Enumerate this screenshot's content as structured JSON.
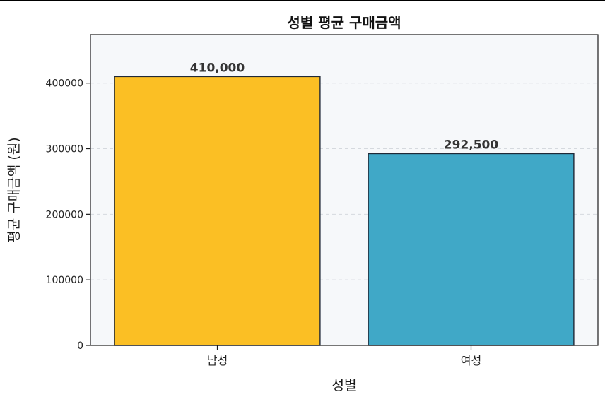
{
  "chart_data": {
    "type": "bar",
    "title": "성별 평균 구매금액",
    "xlabel": "성별",
    "ylabel": "평균 구매금액 (원)",
    "categories": [
      "남성",
      "여성"
    ],
    "values": [
      410000,
      292500
    ],
    "data_labels": [
      "410,000",
      "292,500"
    ],
    "bar_colors": [
      "#FBBF24",
      "#40A8C7"
    ],
    "edge_color": "#1F2937",
    "plot_background": "#F6F8FA",
    "ylim": [
      0,
      474000
    ],
    "yticks": [
      0,
      100000,
      200000,
      300000,
      400000
    ],
    "ytick_labels": [
      "0",
      "100000",
      "200000",
      "300000",
      "400000"
    ],
    "grid": "horizontal dashed",
    "legend": "none"
  }
}
